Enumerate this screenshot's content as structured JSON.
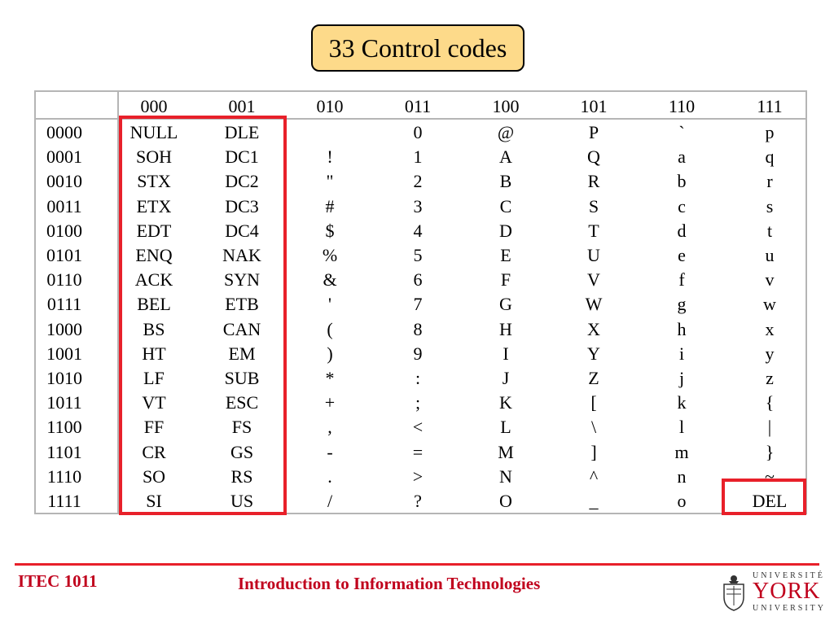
{
  "slide": {
    "title": "33 Control codes",
    "footer_left": "ITEC 1011",
    "footer_center": "Introduction to Information Technologies",
    "logo": {
      "line1": "UNIVERSITÉ",
      "line2": "YORK",
      "line3": "UNIVERSITY"
    }
  },
  "table": {
    "col_headers": [
      "000",
      "001",
      "010",
      "011",
      "100",
      "101",
      "110",
      "111"
    ],
    "rows": [
      {
        "label": "0000",
        "cells": [
          "NULL",
          "DLE",
          "",
          "0",
          "@",
          "P",
          "`",
          "p"
        ]
      },
      {
        "label": "0001",
        "cells": [
          "SOH",
          "DC1",
          "!",
          "1",
          "A",
          "Q",
          "a",
          "q"
        ]
      },
      {
        "label": "0010",
        "cells": [
          "STX",
          "DC2",
          "\"",
          "2",
          "B",
          "R",
          "b",
          "r"
        ]
      },
      {
        "label": "0011",
        "cells": [
          "ETX",
          "DC3",
          "#",
          "3",
          "C",
          "S",
          "c",
          "s"
        ]
      },
      {
        "label": "0100",
        "cells": [
          "EDT",
          "DC4",
          "$",
          "4",
          "D",
          "T",
          "d",
          "t"
        ]
      },
      {
        "label": "0101",
        "cells": [
          "ENQ",
          "NAK",
          "%",
          "5",
          "E",
          "U",
          "e",
          "u"
        ]
      },
      {
        "label": "0110",
        "cells": [
          "ACK",
          "SYN",
          "&",
          "6",
          "F",
          "V",
          "f",
          "v"
        ]
      },
      {
        "label": "0111",
        "cells": [
          "BEL",
          "ETB",
          "'",
          "7",
          "G",
          "W",
          "g",
          "w"
        ]
      },
      {
        "label": "1000",
        "cells": [
          "BS",
          "CAN",
          "(",
          "8",
          "H",
          "X",
          "h",
          "x"
        ]
      },
      {
        "label": "1001",
        "cells": [
          "HT",
          "EM",
          ")",
          "9",
          "I",
          "Y",
          "i",
          "y"
        ]
      },
      {
        "label": "1010",
        "cells": [
          "LF",
          "SUB",
          "*",
          ":",
          "J",
          "Z",
          "j",
          "z"
        ]
      },
      {
        "label": "1011",
        "cells": [
          "VT",
          "ESC",
          "+",
          ";",
          "K",
          "[",
          "k",
          "{"
        ]
      },
      {
        "label": "1100",
        "cells": [
          "FF",
          "FS",
          ",",
          "<",
          "L",
          "\\",
          "l",
          "|"
        ]
      },
      {
        "label": "1101",
        "cells": [
          "CR",
          "GS",
          "-",
          "=",
          "M",
          "]",
          "m",
          "}"
        ]
      },
      {
        "label": "1110",
        "cells": [
          "SO",
          "RS",
          ".",
          ">",
          "N",
          "^",
          "n",
          "~"
        ]
      },
      {
        "label": "1111",
        "cells": [
          "SI",
          "US",
          "/",
          "?",
          "O",
          "_",
          "o",
          "DEL"
        ]
      }
    ]
  },
  "highlight_color": "#e8202a",
  "title_bg": "#fdda8a",
  "footer_color": "#c0001c"
}
